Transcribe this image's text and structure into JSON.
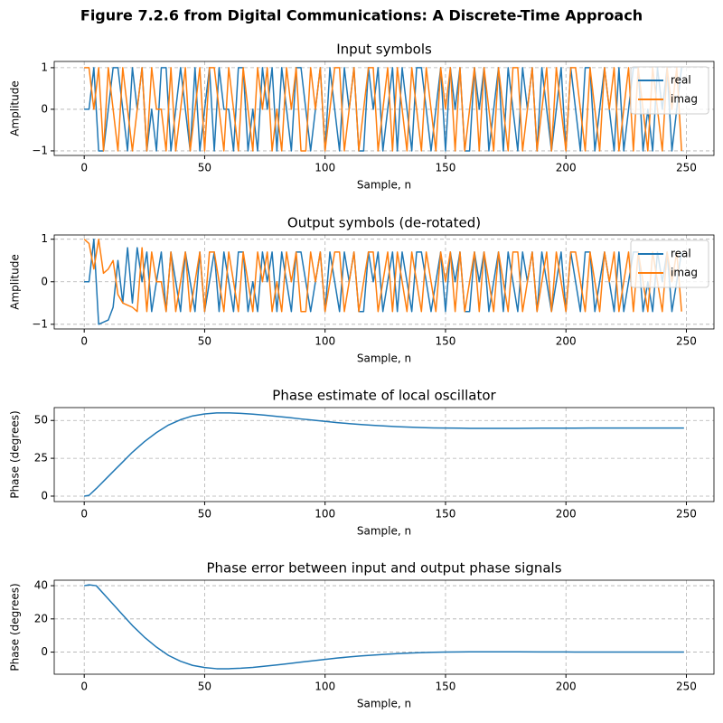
{
  "title": "Figure 7.2.6 from Digital Communications: A Discrete-Time Approach",
  "chart_data": [
    {
      "type": "line",
      "title": "Input symbols",
      "xlabel": "Sample, n",
      "ylabel": "Amplitude",
      "x": [
        0,
        2,
        4,
        6,
        8,
        10,
        12,
        14,
        16,
        18,
        20,
        22,
        24,
        26,
        28,
        30,
        32,
        34,
        36,
        38,
        40,
        42,
        44,
        46,
        48,
        50,
        52,
        54,
        56,
        58,
        60,
        62,
        64,
        66,
        68,
        70,
        72,
        74,
        76,
        78,
        80,
        82,
        84,
        86,
        88,
        90,
        92,
        94,
        96,
        98,
        100,
        102,
        104,
        106,
        108,
        110,
        112,
        114,
        116,
        118,
        120,
        122,
        124,
        126,
        128,
        130,
        132,
        134,
        136,
        138,
        140,
        142,
        144,
        146,
        148,
        150,
        152,
        154,
        156,
        158,
        160,
        162,
        164,
        166,
        168,
        170,
        172,
        174,
        176,
        178,
        180,
        182,
        184,
        186,
        188,
        190,
        192,
        194,
        196,
        198,
        200,
        202,
        204,
        206,
        208,
        210,
        212,
        214,
        216,
        218,
        220,
        222,
        224,
        226,
        228,
        230,
        232,
        234,
        236,
        238,
        240,
        242,
        244,
        246,
        248
      ],
      "series": [
        {
          "name": "real",
          "color": "#1f77b4",
          "values": [
            0,
            0,
            1,
            -1,
            -1,
            0,
            1,
            1,
            0,
            -1,
            1,
            0,
            1,
            -1,
            0,
            -1,
            1,
            1,
            -1,
            0,
            1,
            0,
            -1,
            1,
            -1,
            0,
            1,
            -1,
            1,
            0,
            0,
            -1,
            1,
            1,
            -1,
            0,
            -1,
            1,
            0,
            1,
            -1,
            1,
            0,
            -1,
            1,
            1,
            0,
            -1,
            0,
            1,
            -1,
            1,
            0,
            -1,
            1,
            0,
            1,
            -1,
            -1,
            1,
            0,
            1,
            -1,
            0,
            1,
            -1,
            1,
            0,
            -1,
            1,
            1,
            0,
            -1,
            0,
            1,
            -1,
            1,
            0,
            1,
            -1,
            -1,
            1,
            0,
            1,
            -1,
            0,
            1,
            -1,
            1,
            0,
            -1,
            1,
            0,
            1,
            -1,
            1,
            0,
            -1,
            0,
            1,
            -1,
            1,
            0,
            -1,
            1,
            1,
            -1,
            0,
            1,
            0,
            -1,
            1,
            -1,
            0,
            1,
            1,
            -1,
            0,
            -1,
            1,
            0,
            1,
            -1,
            0,
            1
          ]
        },
        {
          "name": "imag",
          "color": "#ff7f0e",
          "values": [
            1,
            1,
            0,
            1,
            -1,
            1,
            0,
            -1,
            1,
            0,
            -1,
            0,
            1,
            -1,
            1,
            0,
            0,
            -1,
            1,
            -1,
            0,
            1,
            -1,
            0,
            1,
            -1,
            1,
            1,
            0,
            -1,
            1,
            0,
            -1,
            1,
            0,
            -1,
            1,
            0,
            1,
            -1,
            0,
            -1,
            1,
            0,
            1,
            -1,
            -1,
            1,
            0,
            1,
            -1,
            0,
            1,
            1,
            -1,
            0,
            1,
            -1,
            0,
            1,
            1,
            -1,
            0,
            1,
            -1,
            1,
            0,
            -1,
            1,
            0,
            -1,
            1,
            0,
            -1,
            1,
            0,
            1,
            -1,
            1,
            -1,
            0,
            1,
            -1,
            1,
            0,
            -1,
            1,
            0,
            -1,
            1,
            1,
            -1,
            0,
            1,
            -1,
            0,
            1,
            -1,
            1,
            0,
            -1,
            1,
            1,
            0,
            -1,
            1,
            0,
            -1,
            1,
            0,
            1,
            -1,
            0,
            1,
            -1,
            1,
            0,
            -1,
            1,
            0,
            -1,
            1,
            0,
            1,
            -1
          ]
        }
      ],
      "xlim": [
        -12.45,
        261.45
      ],
      "xticks": [
        0,
        50,
        100,
        150,
        200,
        250
      ],
      "ylim": [
        -1.11,
        1.15
      ],
      "yticks": [
        {
          "value": -1,
          "label": "−1"
        },
        0,
        1
      ],
      "grid": true,
      "legend": "upper right"
    },
    {
      "type": "line",
      "title": "Output symbols (de-rotated)",
      "xlabel": "Sample, n",
      "ylabel": "Amplitude",
      "x": [
        0,
        2,
        4,
        6,
        8,
        10,
        12,
        14,
        16,
        18,
        20,
        22,
        24,
        26,
        28,
        30,
        32,
        34,
        36,
        38,
        40,
        42,
        44,
        46,
        48,
        50,
        52,
        54,
        56,
        58,
        60,
        62,
        64,
        66,
        68,
        70,
        72,
        74,
        76,
        78,
        80,
        82,
        84,
        86,
        88,
        90,
        92,
        94,
        96,
        98,
        100,
        102,
        104,
        106,
        108,
        110,
        112,
        114,
        116,
        118,
        120,
        122,
        124,
        126,
        128,
        130,
        132,
        134,
        136,
        138,
        140,
        142,
        144,
        146,
        148,
        150,
        152,
        154,
        156,
        158,
        160,
        162,
        164,
        166,
        168,
        170,
        172,
        174,
        176,
        178,
        180,
        182,
        184,
        186,
        188,
        190,
        192,
        194,
        196,
        198,
        200,
        202,
        204,
        206,
        208,
        210,
        212,
        214,
        216,
        218,
        220,
        222,
        224,
        226,
        228,
        230,
        232,
        234,
        236,
        238,
        240,
        242,
        244,
        246,
        248
      ],
      "series": [
        {
          "name": "real",
          "color": "#1f77b4",
          "values": [
            0,
            0,
            1,
            -1,
            -0.95,
            -0.9,
            -0.6,
            0.5,
            -0.5,
            0.8,
            -0.5,
            0.8,
            0,
            0.7,
            -0.7,
            0,
            0.7,
            -0.7,
            0.7,
            0,
            -0.7,
            0.7,
            0,
            -0.7,
            0.7,
            -0.7,
            0,
            0.7,
            -0.7,
            0.7,
            0,
            -0.7,
            0.7,
            0.7,
            -0.7,
            0,
            -0.7,
            0.7,
            0,
            0.7,
            -0.7,
            0.7,
            0,
            -0.7,
            0.7,
            0.7,
            0,
            -0.7,
            0,
            0.7,
            -0.7,
            0.7,
            0,
            -0.7,
            0.7,
            0,
            0.7,
            -0.7,
            -0.7,
            0.7,
            0,
            0.7,
            -0.7,
            0,
            0.7,
            -0.7,
            0.7,
            0,
            -0.7,
            0.7,
            0.7,
            0,
            -0.7,
            0,
            0.7,
            -0.7,
            0.7,
            0,
            0.7,
            -0.7,
            -0.7,
            0.7,
            0,
            0.7,
            -0.7,
            0,
            0.7,
            -0.7,
            0.7,
            0,
            -0.7,
            0.7,
            0,
            0.7,
            -0.7,
            0.7,
            0,
            -0.7,
            0,
            0.7,
            -0.7,
            0.7,
            0,
            -0.7,
            0.7,
            0.7,
            -0.7,
            0,
            0.7,
            0,
            -0.7,
            0.7,
            -0.7,
            0,
            0.7,
            0.7,
            -0.7,
            0,
            -0.7,
            0.7,
            0,
            0.7,
            -0.7,
            0,
            0.7
          ]
        },
        {
          "name": "imag",
          "color": "#ff7f0e",
          "values": [
            1,
            0.9,
            0.3,
            1,
            0.2,
            0.3,
            0.5,
            -0.3,
            -0.5,
            -0.55,
            -0.6,
            -0.7,
            0.8,
            -0.7,
            0.7,
            0,
            0,
            -0.7,
            0.7,
            -0.7,
            0,
            0.7,
            -0.7,
            0,
            0.7,
            -0.7,
            0.7,
            0.7,
            0,
            -0.7,
            0.7,
            0,
            -0.7,
            0.7,
            0,
            -0.7,
            0.7,
            0,
            0.7,
            -0.7,
            0,
            -0.7,
            0.7,
            0,
            0.7,
            -0.7,
            -0.7,
            0.7,
            0,
            0.7,
            -0.7,
            0,
            0.7,
            0.7,
            -0.7,
            0,
            0.7,
            -0.7,
            0,
            0.7,
            0.7,
            -0.7,
            0,
            0.7,
            -0.7,
            0.7,
            0,
            -0.7,
            0.7,
            0,
            -0.7,
            0.7,
            0,
            -0.7,
            0.7,
            0,
            0.7,
            -0.7,
            0.7,
            -0.7,
            0,
            0.7,
            -0.7,
            0.7,
            0,
            -0.7,
            0.7,
            0,
            -0.7,
            0.7,
            0.7,
            -0.7,
            0,
            0.7,
            -0.7,
            0,
            0.7,
            -0.7,
            0.7,
            0,
            -0.7,
            0.7,
            0.7,
            0,
            -0.7,
            0.7,
            0,
            -0.7,
            0.7,
            0,
            0.7,
            -0.7,
            0,
            0.7,
            -0.7,
            0.7,
            0,
            -0.7,
            0.7,
            0,
            -0.7,
            0.7,
            0,
            0.7,
            -0.7
          ]
        }
      ],
      "xlim": [
        -12.45,
        261.45
      ],
      "xticks": [
        0,
        50,
        100,
        150,
        200,
        250
      ],
      "ylim": [
        -1.11,
        1.1
      ],
      "yticks": [
        {
          "value": -1,
          "label": "−1"
        },
        0,
        1
      ],
      "grid": true,
      "legend": "upper right"
    },
    {
      "type": "line",
      "title": "Phase estimate of local oscillator",
      "xlabel": "Sample, n",
      "ylabel": "Phase (degrees)",
      "x": [
        0,
        2,
        5,
        10,
        15,
        20,
        25,
        30,
        35,
        40,
        45,
        50,
        55,
        60,
        65,
        70,
        75,
        80,
        85,
        90,
        95,
        100,
        105,
        110,
        115,
        120,
        125,
        130,
        135,
        140,
        145,
        150,
        160,
        170,
        180,
        190,
        200,
        210,
        220,
        230,
        240,
        249
      ],
      "values": [
        0,
        0.5,
        5,
        13,
        21,
        29,
        36,
        42,
        47,
        50.5,
        53,
        54.3,
        55,
        55,
        54.7,
        54.2,
        53.5,
        52.7,
        51.9,
        51,
        50.2,
        49.4,
        48.6,
        47.9,
        47.3,
        46.8,
        46.3,
        45.9,
        45.6,
        45.3,
        45.1,
        45,
        44.8,
        44.8,
        44.8,
        44.9,
        44.9,
        45,
        45,
        45,
        45,
        45
      ],
      "color": "#1f77b4",
      "xlim": [
        -12.45,
        261.45
      ],
      "xticks": [
        0,
        50,
        100,
        150,
        200,
        250
      ],
      "ylim": [
        -3.6,
        58.5
      ],
      "yticks": [
        0,
        25,
        50
      ],
      "grid": true
    },
    {
      "type": "line",
      "title": "Phase error between input and output phase signals",
      "xlabel": "Sample, n",
      "ylabel": "Phase (degrees)",
      "x": [
        0,
        2,
        5,
        10,
        15,
        20,
        25,
        30,
        35,
        40,
        45,
        50,
        55,
        60,
        65,
        70,
        75,
        80,
        85,
        90,
        95,
        100,
        105,
        110,
        115,
        120,
        125,
        130,
        135,
        140,
        145,
        150,
        160,
        170,
        180,
        190,
        200,
        210,
        220,
        230,
        240,
        249
      ],
      "values": [
        40,
        40.5,
        40,
        32,
        24,
        16,
        9,
        3,
        -2,
        -5.5,
        -8,
        -9.3,
        -10,
        -10,
        -9.7,
        -9.2,
        -8.5,
        -7.7,
        -6.9,
        -6,
        -5.2,
        -4.4,
        -3.6,
        -2.9,
        -2.3,
        -1.8,
        -1.3,
        -0.9,
        -0.6,
        -0.3,
        -0.1,
        0,
        0.2,
        0.2,
        0.2,
        0.1,
        0.1,
        0,
        0,
        0,
        0,
        0
      ],
      "color": "#1f77b4",
      "xlim": [
        -12.45,
        261.45
      ],
      "xticks": [
        0,
        50,
        100,
        150,
        200,
        250
      ],
      "ylim": [
        -13.3,
        43.3
      ],
      "yticks": [
        0,
        20,
        40
      ],
      "grid": true
    }
  ]
}
